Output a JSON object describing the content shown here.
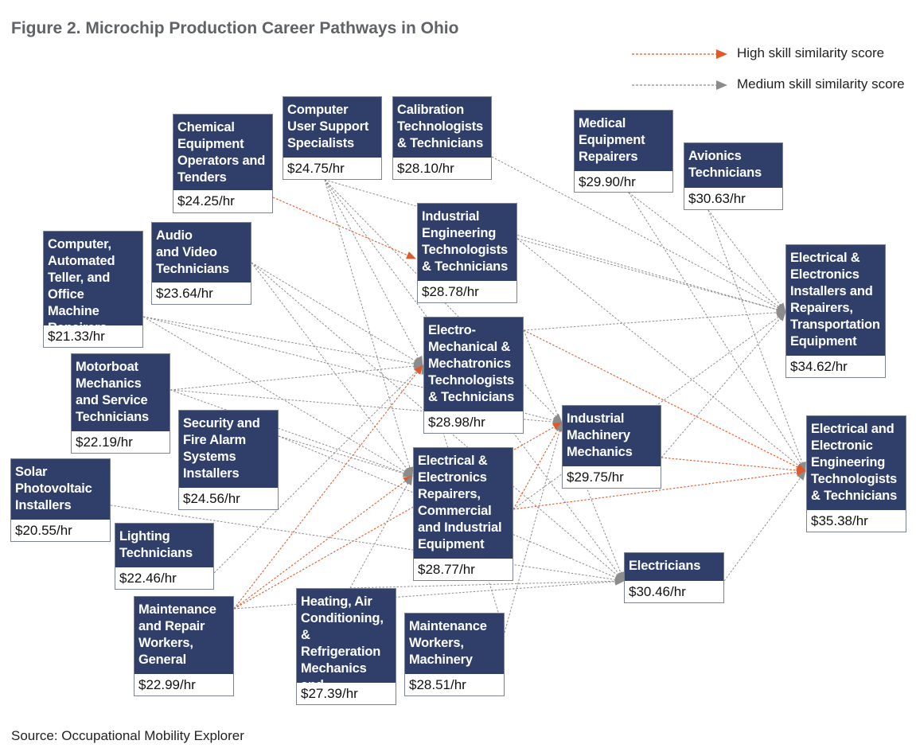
{
  "title": "Figure 2. Microchip Production Career Pathways in Ohio",
  "source": "Source: Occupational Mobility Explorer",
  "legend": [
    {
      "label": "High skill similarity score",
      "color": "#e0592a"
    },
    {
      "label": "Medium skill similarity score",
      "color": "#8c8c8c"
    }
  ],
  "colors": {
    "node_header": "#2f3f6a",
    "high": "#e0592a",
    "medium": "#8c8c8c"
  },
  "nodes": [
    {
      "id": "chem",
      "name": "Chemical\nEquipment\nOperators and\nTenders",
      "wage": "$24.25/hr"
    },
    {
      "id": "cuss",
      "name": "Computer\nUser Support\nSpecialists",
      "wage": "$24.75/hr"
    },
    {
      "id": "calib",
      "name": "Calibration\nTechnologists\n& Technicians",
      "wage": "$28.10/hr"
    },
    {
      "id": "medrep",
      "name": "Medical\nEquipment\nRepairers",
      "wage": "$29.90/hr"
    },
    {
      "id": "avion",
      "name": "Avionics\nTechnicians",
      "wage": "$30.63/hr"
    },
    {
      "id": "ieng",
      "name": "Industrial\nEngineering\nTechnologists\n& Technicians",
      "wage": "$28.78/hr"
    },
    {
      "id": "catm",
      "name": "Computer,\nAutomated\nTeller, and\nOffice Machine\nRepairers",
      "wage": "$21.33/hr"
    },
    {
      "id": "av",
      "name": "Audio\nand Video\nTechnicians",
      "wage": "$23.64/hr"
    },
    {
      "id": "eltr",
      "name": "Electrical &\nElectronics\nInstallers and\nRepairers,\nTransportation\nEquipment",
      "wage": "$34.62/hr"
    },
    {
      "id": "emech",
      "name": "Electro-\nMechanical &\nMechatronics\nTechnologists\n& Technicians",
      "wage": "$28.98/hr"
    },
    {
      "id": "motor",
      "name": "Motorboat\nMechanics\nand Service\nTechnicians",
      "wage": "$22.19/hr"
    },
    {
      "id": "secfire",
      "name": "Security and\nFire Alarm\nSystems\nInstallers",
      "wage": "$24.56/hr"
    },
    {
      "id": "indmach",
      "name": "Industrial\nMachinery\nMechanics",
      "wage": "$29.75/hr"
    },
    {
      "id": "eeng",
      "name": "Electrical and\nElectronic\nEngineering\nTechnologists\n& Technicians",
      "wage": "$35.38/hr"
    },
    {
      "id": "solar",
      "name": "Solar\nPhotovoltaic\nInstallers",
      "wage": "$20.55/hr"
    },
    {
      "id": "elrep",
      "name": "Electrical &\nElectronics\nRepairers,\nCommercial\nand Industrial\nEquipment",
      "wage": "$28.77/hr"
    },
    {
      "id": "light",
      "name": "Lighting\nTechnicians",
      "wage": "$22.46/hr"
    },
    {
      "id": "elec",
      "name": "Electricians",
      "wage": "$30.46/hr"
    },
    {
      "id": "mrgen",
      "name": "Maintenance\nand Repair\nWorkers,\nGeneral",
      "wage": "$22.99/hr"
    },
    {
      "id": "hvac",
      "name": "Heating, Air\nConditioning,\n& Refrigeration\nMechanics and\nInstallers",
      "wage": "$27.39/hr"
    },
    {
      "id": "mwm",
      "name": "Maintenance\nWorkers,\nMachinery",
      "wage": "$28.51/hr"
    }
  ],
  "edges": [
    {
      "from": "chem",
      "to": "ieng",
      "level": "high"
    },
    {
      "from": "cuss",
      "to": "eltr",
      "level": "medium"
    },
    {
      "from": "cuss",
      "to": "indmach",
      "level": "medium"
    },
    {
      "from": "cuss",
      "to": "elrep",
      "level": "medium"
    },
    {
      "from": "cuss",
      "to": "elec",
      "level": "medium"
    },
    {
      "from": "cuss",
      "to": "emech",
      "level": "medium"
    },
    {
      "from": "calib",
      "to": "eltr",
      "level": "medium"
    },
    {
      "from": "medrep",
      "to": "eltr",
      "level": "medium"
    },
    {
      "from": "medrep",
      "to": "eeng",
      "level": "medium"
    },
    {
      "from": "avion",
      "to": "eltr",
      "level": "medium"
    },
    {
      "from": "avion",
      "to": "eeng",
      "level": "medium"
    },
    {
      "from": "ieng",
      "to": "eltr",
      "level": "medium"
    },
    {
      "from": "ieng",
      "to": "eeng",
      "level": "medium"
    },
    {
      "from": "catm",
      "to": "emech",
      "level": "medium"
    },
    {
      "from": "catm",
      "to": "elrep",
      "level": "medium"
    },
    {
      "from": "catm",
      "to": "indmach",
      "level": "medium"
    },
    {
      "from": "av",
      "to": "emech",
      "level": "medium"
    },
    {
      "from": "av",
      "to": "elrep",
      "level": "medium"
    },
    {
      "from": "av",
      "to": "elec",
      "level": "medium"
    },
    {
      "from": "emech",
      "to": "eltr",
      "level": "medium"
    },
    {
      "from": "emech",
      "to": "eeng",
      "level": "high"
    },
    {
      "from": "emech",
      "to": "elec",
      "level": "medium"
    },
    {
      "from": "motor",
      "to": "emech",
      "level": "medium"
    },
    {
      "from": "motor",
      "to": "elrep",
      "level": "medium"
    },
    {
      "from": "motor",
      "to": "indmach",
      "level": "medium"
    },
    {
      "from": "secfire",
      "to": "elrep",
      "level": "medium"
    },
    {
      "from": "secfire",
      "to": "elec",
      "level": "medium"
    },
    {
      "from": "indmach",
      "to": "eltr",
      "level": "medium"
    },
    {
      "from": "indmach",
      "to": "eeng",
      "level": "high"
    },
    {
      "from": "solar",
      "to": "elec",
      "level": "medium"
    },
    {
      "from": "elrep",
      "to": "indmach",
      "level": "high"
    },
    {
      "from": "elrep",
      "to": "eeng",
      "level": "high"
    },
    {
      "from": "elrep",
      "to": "eltr",
      "level": "medium"
    },
    {
      "from": "light",
      "to": "emech",
      "level": "medium"
    },
    {
      "from": "mrgen",
      "to": "emech",
      "level": "high"
    },
    {
      "from": "mrgen",
      "to": "elrep",
      "level": "high"
    },
    {
      "from": "mrgen",
      "to": "indmach",
      "level": "high"
    },
    {
      "from": "mrgen",
      "to": "elec",
      "level": "medium"
    },
    {
      "from": "hvac",
      "to": "elrep",
      "level": "medium"
    },
    {
      "from": "hvac",
      "to": "elec",
      "level": "medium"
    },
    {
      "from": "elec",
      "to": "eeng",
      "level": "medium"
    },
    {
      "from": "mwm",
      "to": "indmach",
      "level": "medium"
    },
    {
      "from": "mwm",
      "to": "emech",
      "level": "medium"
    }
  ]
}
